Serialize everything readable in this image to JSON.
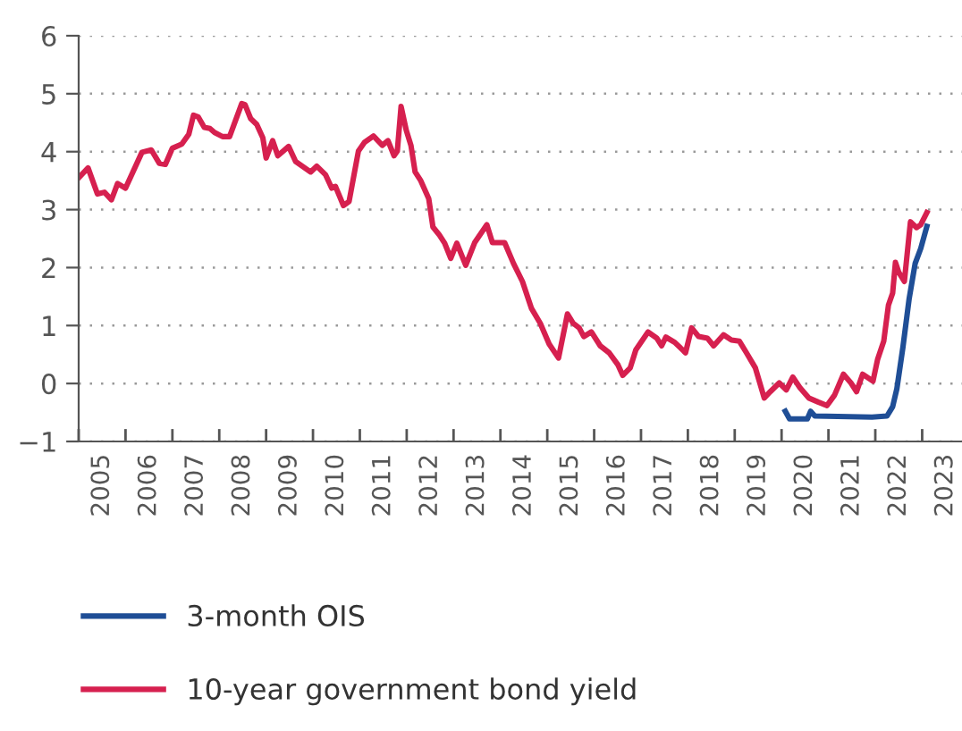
{
  "chart_data": {
    "type": "line",
    "xlim": [
      2005,
      2023.85
    ],
    "ylim": [
      -1,
      6
    ],
    "yticks": [
      {
        "value": -1,
        "label": "−1"
      },
      0,
      1,
      2,
      3,
      4,
      5,
      6
    ],
    "xticks": [
      {
        "value": 2005,
        "label": null
      },
      {
        "value": 2006,
        "label": null
      },
      {
        "value": 2007,
        "label": null
      },
      {
        "value": 2008,
        "label": null
      },
      {
        "value": 2009,
        "label": null
      },
      {
        "value": 2010,
        "label": null
      },
      {
        "value": 2011,
        "label": null
      },
      {
        "value": 2012,
        "label": null
      },
      {
        "value": 2013,
        "label": null
      },
      {
        "value": 2014,
        "label": null
      },
      {
        "value": 2015,
        "label": null
      },
      {
        "value": 2016,
        "label": null
      },
      {
        "value": 2017,
        "label": null
      },
      {
        "value": 2018,
        "label": null
      },
      {
        "value": 2019,
        "label": null
      },
      {
        "value": 2020,
        "label": null
      },
      {
        "value": 2021,
        "label": null
      },
      {
        "value": 2022,
        "label": null
      },
      {
        "value": 2023,
        "label": null
      },
      {
        "value": 2005.5,
        "label": "2005"
      },
      {
        "value": 2006.5,
        "label": "2006"
      },
      {
        "value": 2007.5,
        "label": "2007"
      },
      {
        "value": 2008.5,
        "label": "2008"
      },
      {
        "value": 2009.5,
        "label": "2009"
      },
      {
        "value": 2010.5,
        "label": "2010"
      },
      {
        "value": 2011.5,
        "label": "2011"
      },
      {
        "value": 2012.5,
        "label": "2012"
      },
      {
        "value": 2013.5,
        "label": "2013"
      },
      {
        "value": 2014.5,
        "label": "2014"
      },
      {
        "value": 2015.5,
        "label": "2015"
      },
      {
        "value": 2016.5,
        "label": "2016"
      },
      {
        "value": 2017.5,
        "label": "2017"
      },
      {
        "value": 2018.5,
        "label": "2018"
      },
      {
        "value": 2019.5,
        "label": "2019"
      },
      {
        "value": 2020.5,
        "label": "2020"
      },
      {
        "value": 2021.5,
        "label": "2021"
      },
      {
        "value": 2022.5,
        "label": "2022"
      },
      {
        "value": 2023.5,
        "label": "2023"
      }
    ],
    "grid": "y",
    "legend": "bottom",
    "marker": "none",
    "line_style": "solid",
    "series": [
      {
        "name": "3-month OIS",
        "color": "#1f4e96",
        "x": [
          2020.08,
          2020.17,
          2020.55,
          2020.62,
          2020.71,
          2021.93,
          2022.25,
          2022.37,
          2022.46,
          2022.59,
          2022.72,
          2022.85,
          2022.97,
          2023.1
        ],
        "values": [
          -0.48,
          -0.61,
          -0.61,
          -0.48,
          -0.56,
          -0.58,
          -0.56,
          -0.4,
          -0.09,
          0.63,
          1.45,
          2.07,
          2.33,
          2.71
        ]
      },
      {
        "name": "10-year government bond yield",
        "color": "#d6204f",
        "x": [
          2005.0,
          2005.2,
          2005.4,
          2005.55,
          2005.7,
          2005.83,
          2006.0,
          2006.35,
          2006.55,
          2006.72,
          2006.85,
          2007.0,
          2007.2,
          2007.35,
          2007.45,
          2007.55,
          2007.68,
          2007.8,
          2007.9,
          2008.07,
          2008.22,
          2008.48,
          2008.55,
          2008.67,
          2008.8,
          2008.93,
          2009.0,
          2009.14,
          2009.25,
          2009.48,
          2009.63,
          2009.95,
          2010.08,
          2010.27,
          2010.4,
          2010.48,
          2010.65,
          2010.77,
          2010.97,
          2011.1,
          2011.29,
          2011.48,
          2011.6,
          2011.73,
          2011.8,
          2011.88,
          2011.99,
          2012.09,
          2012.18,
          2012.3,
          2012.47,
          2012.56,
          2012.69,
          2012.81,
          2012.94,
          2013.07,
          2013.26,
          2013.45,
          2013.71,
          2013.83,
          2014.09,
          2014.28,
          2014.47,
          2014.66,
          2014.85,
          2015.04,
          2015.24,
          2015.43,
          2015.55,
          2015.68,
          2015.78,
          2015.94,
          2016.13,
          2016.32,
          2016.51,
          2016.61,
          2016.77,
          2016.89,
          2017.15,
          2017.34,
          2017.44,
          2017.53,
          2017.72,
          2017.95,
          2018.08,
          2018.23,
          2018.42,
          2018.55,
          2018.76,
          2018.93,
          2019.1,
          2019.25,
          2019.44,
          2019.63,
          2019.76,
          2019.95,
          2020.1,
          2020.24,
          2020.39,
          2020.58,
          2020.78,
          2020.97,
          2021.13,
          2021.32,
          2021.48,
          2021.6,
          2021.73,
          2021.95,
          2022.05,
          2022.18,
          2022.28,
          2022.37,
          2022.43,
          2022.5,
          2022.62,
          2022.75,
          2022.88,
          2022.97,
          2023.1
        ],
        "values": [
          3.55,
          3.72,
          3.27,
          3.3,
          3.17,
          3.45,
          3.37,
          3.99,
          4.03,
          3.8,
          3.78,
          4.06,
          4.13,
          4.3,
          4.63,
          4.6,
          4.42,
          4.4,
          4.33,
          4.26,
          4.26,
          4.83,
          4.81,
          4.57,
          4.47,
          4.24,
          3.89,
          4.19,
          3.93,
          4.09,
          3.83,
          3.65,
          3.75,
          3.6,
          3.37,
          3.4,
          3.07,
          3.14,
          4.01,
          4.16,
          4.27,
          4.11,
          4.19,
          3.93,
          4.01,
          4.78,
          4.37,
          4.11,
          3.65,
          3.5,
          3.19,
          2.7,
          2.57,
          2.42,
          2.16,
          2.42,
          2.04,
          2.43,
          2.74,
          2.43,
          2.43,
          2.07,
          1.76,
          1.3,
          1.04,
          0.68,
          0.44,
          1.2,
          1.04,
          0.96,
          0.81,
          0.89,
          0.65,
          0.53,
          0.32,
          0.14,
          0.27,
          0.58,
          0.89,
          0.78,
          0.65,
          0.8,
          0.71,
          0.53,
          0.96,
          0.81,
          0.78,
          0.65,
          0.84,
          0.75,
          0.73,
          0.53,
          0.27,
          -0.25,
          -0.14,
          0.01,
          -0.11,
          0.11,
          -0.07,
          -0.25,
          -0.32,
          -0.38,
          -0.2,
          0.16,
          0.01,
          -0.14,
          0.16,
          0.04,
          0.42,
          0.73,
          1.35,
          1.56,
          2.09,
          1.92,
          1.76,
          2.79,
          2.69,
          2.74,
          2.95
        ]
      }
    ]
  }
}
